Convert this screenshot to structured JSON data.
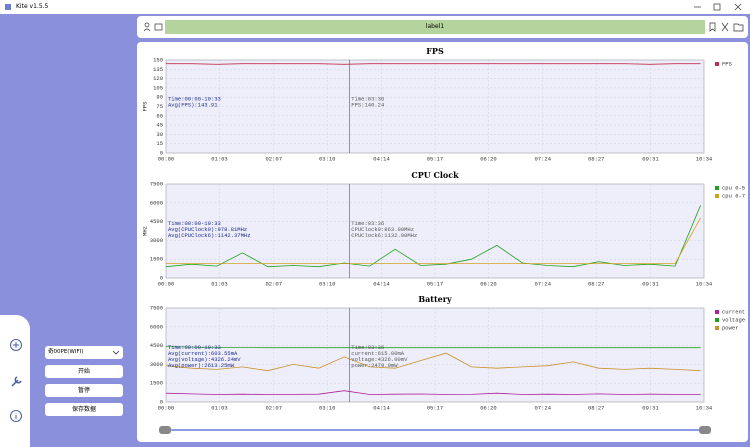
{
  "window": {
    "title": "Kite v1.5.5"
  },
  "toolbar": {
    "label": "label1"
  },
  "sidebar": {
    "device": "奇00PE(WIFI)",
    "buttons": [
      "开始",
      "暂停",
      "保存数据"
    ]
  },
  "chart_data": [
    {
      "type": "line",
      "title": "FPS",
      "y_label": "FPS",
      "x": [
        0,
        30,
        60,
        90,
        120,
        150,
        180,
        210,
        240,
        270,
        300,
        330,
        360,
        390,
        420,
        450,
        480,
        510,
        540,
        570,
        600,
        630
      ],
      "xlim": [
        0,
        634
      ],
      "xticks": [
        {
          "value": 0,
          "label": "00:00"
        },
        {
          "value": 63,
          "label": "01:03"
        },
        {
          "value": 127,
          "label": "02:07"
        },
        {
          "value": 190,
          "label": "03:10"
        },
        {
          "value": 254,
          "label": "04:14"
        },
        {
          "value": 317,
          "label": "05:17"
        },
        {
          "value": 380,
          "label": "06:20"
        },
        {
          "value": 444,
          "label": "07:24"
        },
        {
          "value": 507,
          "label": "08:27"
        },
        {
          "value": 571,
          "label": "09:31"
        },
        {
          "value": 634,
          "label": "10:34"
        }
      ],
      "ylim": [
        0,
        150
      ],
      "yticks": [
        0,
        15,
        30,
        45,
        60,
        75,
        90,
        105,
        120,
        135,
        150
      ],
      "cursor_x": 216,
      "annotations": {
        "left": [
          "Time:00:00-10:33",
          "Avg(FPS):143.91"
        ],
        "cursor": [
          "Time:03:36",
          "FPS:140.24"
        ]
      },
      "series": [
        {
          "name": "FPS",
          "color": "#c0304a",
          "values": [
            144,
            144,
            143,
            144,
            144,
            144,
            144,
            143,
            144,
            144,
            144,
            144,
            144,
            144,
            144,
            144,
            144,
            144,
            144,
            143,
            144,
            144
          ]
        }
      ]
    },
    {
      "type": "line",
      "title": "CPU Clock",
      "y_label": "MHz",
      "x": [
        0,
        30,
        60,
        90,
        120,
        150,
        180,
        210,
        240,
        270,
        300,
        330,
        360,
        390,
        420,
        450,
        480,
        510,
        540,
        570,
        600,
        630
      ],
      "xlim": [
        0,
        634
      ],
      "xticks": [
        {
          "value": 0,
          "label": "00:00"
        },
        {
          "value": 63,
          "label": "01:03"
        },
        {
          "value": 127,
          "label": "02:07"
        },
        {
          "value": 190,
          "label": "03:10"
        },
        {
          "value": 254,
          "label": "04:14"
        },
        {
          "value": 317,
          "label": "05:17"
        },
        {
          "value": 380,
          "label": "06:20"
        },
        {
          "value": 444,
          "label": "07:24"
        },
        {
          "value": 507,
          "label": "08:27"
        },
        {
          "value": 571,
          "label": "09:31"
        },
        {
          "value": 634,
          "label": "10:34"
        }
      ],
      "ylim": [
        0,
        7500
      ],
      "yticks": [
        0,
        1500,
        3000,
        4500,
        6000,
        7500
      ],
      "cursor_x": 216,
      "annotations": {
        "left": [
          "Time:00:00-10:33",
          "Avg(CPUClock0):978.81MHz",
          "Avg(CPUClock6):1142.37MHz"
        ],
        "cursor": [
          "Time:03:36",
          "CPUClock0:863.00MHz",
          "CPUClock6:1132.00MHz"
        ]
      },
      "series": [
        {
          "name": "cpu 0-5",
          "color": "#22a022",
          "values": [
            900,
            1100,
            950,
            2000,
            900,
            1000,
            900,
            1200,
            950,
            2300,
            1000,
            1100,
            1500,
            2600,
            1200,
            1000,
            900,
            1300,
            1000,
            1100,
            950,
            5800
          ]
        },
        {
          "name": "cpu 6-7",
          "color": "#d4a020",
          "values": [
            1150,
            1150,
            1150,
            1150,
            1150,
            1150,
            1150,
            1150,
            1150,
            1150,
            1150,
            1150,
            1150,
            1150,
            1150,
            1150,
            1150,
            1150,
            1150,
            1150,
            1150,
            4800
          ]
        }
      ]
    },
    {
      "type": "line",
      "title": "Battery",
      "y_label": "",
      "x": [
        0,
        30,
        60,
        90,
        120,
        150,
        180,
        210,
        240,
        270,
        300,
        330,
        360,
        390,
        420,
        450,
        480,
        510,
        540,
        570,
        600,
        630
      ],
      "xlim": [
        0,
        634
      ],
      "xticks": [
        {
          "value": 0,
          "label": "00:00"
        },
        {
          "value": 63,
          "label": "01:03"
        },
        {
          "value": 127,
          "label": "02:07"
        },
        {
          "value": 190,
          "label": "03:10"
        },
        {
          "value": 254,
          "label": "04:14"
        },
        {
          "value": 317,
          "label": "05:17"
        },
        {
          "value": 380,
          "label": "06:20"
        },
        {
          "value": 444,
          "label": "07:24"
        },
        {
          "value": 507,
          "label": "08:27"
        },
        {
          "value": 571,
          "label": "09:31"
        },
        {
          "value": 634,
          "label": "10:34"
        }
      ],
      "ylim": [
        0,
        7500
      ],
      "yticks": [
        0,
        1500,
        3000,
        4500,
        6000,
        7500
      ],
      "cursor_x": 216,
      "annotations": {
        "left": [
          "Time:00:00-10:33",
          "Avg(current):603.55mA",
          "Avg(voltage):4326.24mV",
          "Avg(power):2613.25mW"
        ],
        "cursor": [
          "Time:03:36",
          "current:615.00mA",
          "voltage:4326.00mV",
          "power:2479.9mW"
        ]
      },
      "series": [
        {
          "name": "current",
          "color": "#b0209a",
          "values": [
            700,
            650,
            600,
            620,
            600,
            610,
            620,
            900,
            600,
            620,
            640,
            600,
            610,
            700,
            600,
            620,
            600,
            650,
            600,
            620,
            610,
            600
          ]
        },
        {
          "name": "voltage",
          "color": "#22a022",
          "values": [
            4420,
            4380,
            4350,
            4340,
            4330,
            4330,
            4330,
            4330,
            4330,
            4330,
            4330,
            4330,
            4330,
            4330,
            4330,
            4330,
            4330,
            4330,
            4330,
            4330,
            4330,
            4330
          ]
        },
        {
          "name": "power",
          "color": "#c8902a",
          "values": [
            2900,
            2700,
            2600,
            2800,
            2500,
            3000,
            2700,
            3600,
            2800,
            2700,
            3300,
            3900,
            2800,
            2700,
            2800,
            2900,
            3200,
            2700,
            2600,
            2700,
            2600,
            2500
          ]
        }
      ]
    }
  ]
}
